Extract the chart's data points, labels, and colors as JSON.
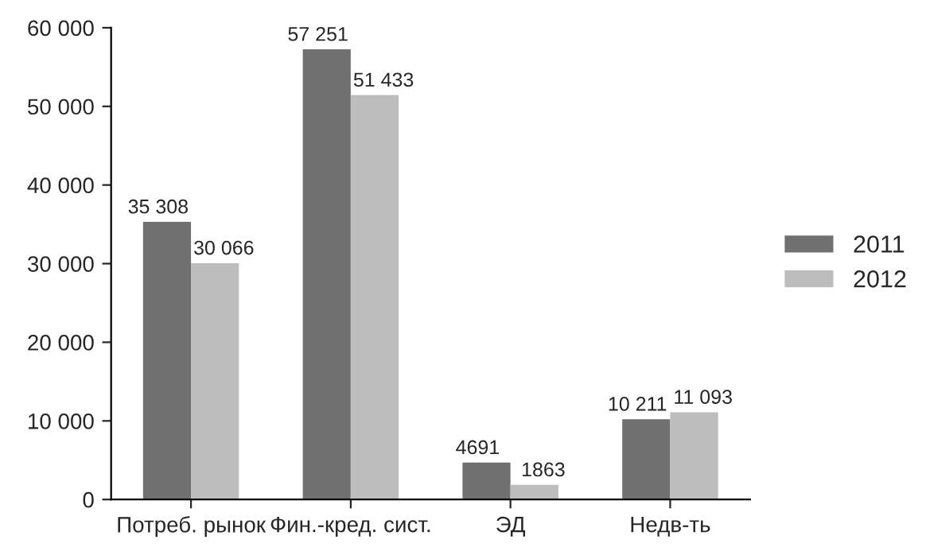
{
  "chart_data": {
    "type": "bar",
    "categories": [
      "Потреб. рынок",
      "Фин.-кред. сист.",
      "ЭД",
      "Недв-ть"
    ],
    "series": [
      {
        "name": "2011",
        "color": "#707070",
        "values": [
          35308,
          57251,
          4691,
          10211
        ],
        "value_labels": [
          "35 308",
          "57 251",
          "4691",
          "10 211"
        ]
      },
      {
        "name": "2012",
        "color": "#bdbdbd",
        "values": [
          30066,
          51433,
          1863,
          11093
        ],
        "value_labels": [
          "30 066",
          "51 433",
          "1863",
          "11 093"
        ]
      }
    ],
    "ylim": [
      0,
      60000
    ],
    "yticks": [
      {
        "value": 0,
        "label": "0"
      },
      {
        "value": 10000,
        "label": "10 000"
      },
      {
        "value": 20000,
        "label": "20 000"
      },
      {
        "value": 30000,
        "label": "30 000"
      },
      {
        "value": 40000,
        "label": "40 000"
      },
      {
        "value": 50000,
        "label": "50 000"
      },
      {
        "value": 60000,
        "label": "60 000"
      }
    ],
    "grid": false,
    "legend": "right"
  }
}
